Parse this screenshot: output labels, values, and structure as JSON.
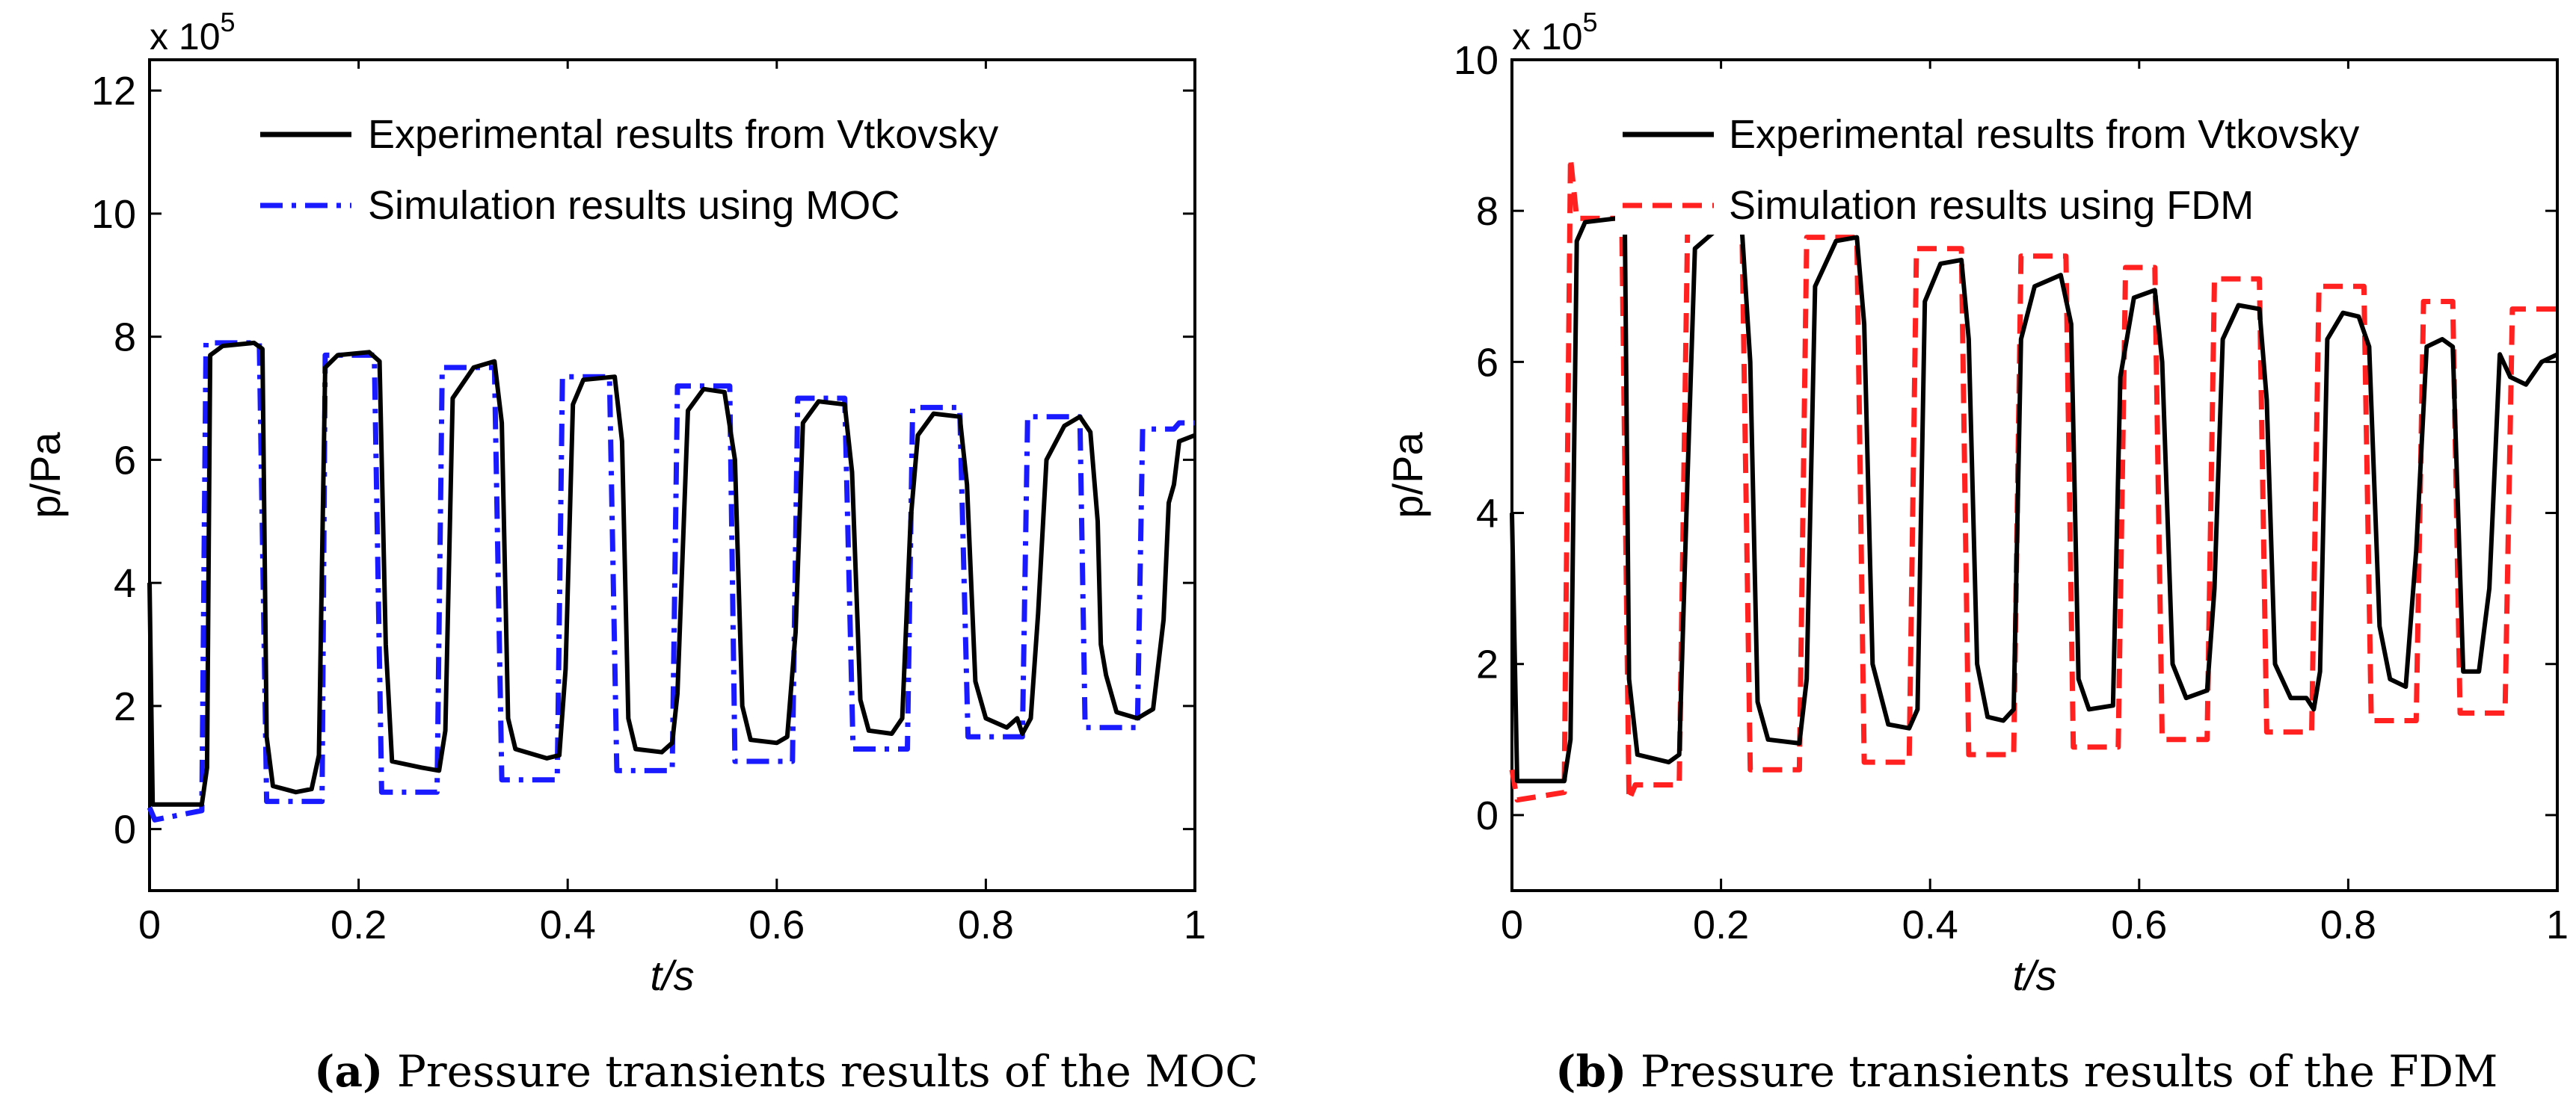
{
  "chart_data": [
    {
      "type": "line",
      "panel": "a",
      "xlabel": "t/s",
      "ylabel": "p/Pa",
      "exponent_label": "x 10",
      "exponent_power": "5",
      "xlim": [
        0,
        1
      ],
      "ylim": [
        -1,
        12.5
      ],
      "xticks": [
        0,
        0.2,
        0.4,
        0.6,
        0.8,
        1
      ],
      "xtick_labels": [
        "0",
        "0.2",
        "0.4",
        "0.6",
        "0.8",
        "1"
      ],
      "yticks": [
        0,
        2,
        4,
        6,
        8,
        10,
        12
      ],
      "ytick_labels": [
        "0",
        "2",
        "4",
        "6",
        "8",
        "10",
        "12"
      ],
      "legend_position": "top-right",
      "series": [
        {
          "name": "Experimental results from Vtkovsky",
          "color": "#000000",
          "style": "solid",
          "points": [
            [
              0,
              4.0
            ],
            [
              0.003,
              0.4
            ],
            [
              0.05,
              0.4
            ],
            [
              0.055,
              1.0
            ],
            [
              0.058,
              7.7
            ],
            [
              0.07,
              7.85
            ],
            [
              0.1,
              7.9
            ],
            [
              0.108,
              7.8
            ],
            [
              0.112,
              1.5
            ],
            [
              0.118,
              0.7
            ],
            [
              0.14,
              0.6
            ],
            [
              0.155,
              0.65
            ],
            [
              0.162,
              1.2
            ],
            [
              0.168,
              7.5
            ],
            [
              0.18,
              7.7
            ],
            [
              0.21,
              7.75
            ],
            [
              0.22,
              7.6
            ],
            [
              0.226,
              3.0
            ],
            [
              0.232,
              1.1
            ],
            [
              0.26,
              1.0
            ],
            [
              0.277,
              0.95
            ],
            [
              0.283,
              1.6
            ],
            [
              0.29,
              7.0
            ],
            [
              0.31,
              7.5
            ],
            [
              0.33,
              7.6
            ],
            [
              0.337,
              6.6
            ],
            [
              0.343,
              1.8
            ],
            [
              0.35,
              1.3
            ],
            [
              0.38,
              1.15
            ],
            [
              0.392,
              1.2
            ],
            [
              0.398,
              2.6
            ],
            [
              0.405,
              6.9
            ],
            [
              0.415,
              7.3
            ],
            [
              0.445,
              7.35
            ],
            [
              0.452,
              6.3
            ],
            [
              0.458,
              1.8
            ],
            [
              0.465,
              1.3
            ],
            [
              0.49,
              1.25
            ],
            [
              0.5,
              1.4
            ],
            [
              0.505,
              2.2
            ],
            [
              0.515,
              6.8
            ],
            [
              0.53,
              7.15
            ],
            [
              0.55,
              7.1
            ],
            [
              0.56,
              6.0
            ],
            [
              0.567,
              2.0
            ],
            [
              0.575,
              1.45
            ],
            [
              0.6,
              1.4
            ],
            [
              0.61,
              1.5
            ],
            [
              0.618,
              3.2
            ],
            [
              0.625,
              6.6
            ],
            [
              0.64,
              6.95
            ],
            [
              0.665,
              6.9
            ],
            [
              0.672,
              5.8
            ],
            [
              0.68,
              2.1
            ],
            [
              0.688,
              1.6
            ],
            [
              0.71,
              1.55
            ],
            [
              0.72,
              1.8
            ],
            [
              0.728,
              5.0
            ],
            [
              0.735,
              6.4
            ],
            [
              0.75,
              6.75
            ],
            [
              0.775,
              6.7
            ],
            [
              0.782,
              5.6
            ],
            [
              0.79,
              2.4
            ],
            [
              0.8,
              1.8
            ],
            [
              0.82,
              1.65
            ],
            [
              0.83,
              1.8
            ],
            [
              0.835,
              1.55
            ],
            [
              0.843,
              1.8
            ],
            [
              0.85,
              3.5
            ],
            [
              0.858,
              6.0
            ],
            [
              0.875,
              6.55
            ],
            [
              0.89,
              6.7
            ],
            [
              0.9,
              6.45
            ],
            [
              0.907,
              5.0
            ],
            [
              0.91,
              3.0
            ],
            [
              0.915,
              2.5
            ],
            [
              0.925,
              1.9
            ],
            [
              0.945,
              1.8
            ],
            [
              0.96,
              1.95
            ],
            [
              0.97,
              3.4
            ],
            [
              0.975,
              5.3
            ],
            [
              0.98,
              5.6
            ],
            [
              0.985,
              6.3
            ],
            [
              1.0,
              6.4
            ]
          ]
        },
        {
          "name": "Simulation results using MOC",
          "color": "#1a1aff",
          "style": "dashdot",
          "points": [
            [
              0,
              0.35
            ],
            [
              0.005,
              0.15
            ],
            [
              0.05,
              0.3
            ],
            [
              0.054,
              7.9
            ],
            [
              0.105,
              7.9
            ],
            [
              0.112,
              0.45
            ],
            [
              0.165,
              0.45
            ],
            [
              0.168,
              7.7
            ],
            [
              0.215,
              7.7
            ],
            [
              0.222,
              0.6
            ],
            [
              0.275,
              0.6
            ],
            [
              0.28,
              7.5
            ],
            [
              0.33,
              7.5
            ],
            [
              0.337,
              0.8
            ],
            [
              0.39,
              0.8
            ],
            [
              0.395,
              7.35
            ],
            [
              0.44,
              7.35
            ],
            [
              0.447,
              0.95
            ],
            [
              0.5,
              0.95
            ],
            [
              0.505,
              7.2
            ],
            [
              0.555,
              7.2
            ],
            [
              0.56,
              1.1
            ],
            [
              0.615,
              1.1
            ],
            [
              0.62,
              7.0
            ],
            [
              0.665,
              7.0
            ],
            [
              0.673,
              1.3
            ],
            [
              0.725,
              1.3
            ],
            [
              0.73,
              6.85
            ],
            [
              0.775,
              6.85
            ],
            [
              0.783,
              1.5
            ],
            [
              0.835,
              1.5
            ],
            [
              0.84,
              6.7
            ],
            [
              0.89,
              6.7
            ],
            [
              0.895,
              1.65
            ],
            [
              0.945,
              1.65
            ],
            [
              0.95,
              6.5
            ],
            [
              0.98,
              6.5
            ],
            [
              0.985,
              6.6
            ],
            [
              1.0,
              6.6
            ]
          ]
        }
      ]
    },
    {
      "type": "line",
      "panel": "b",
      "xlabel": "t/s",
      "ylabel": "p/Pa",
      "exponent_label": "x 10",
      "exponent_power": "5",
      "xlim": [
        0,
        1
      ],
      "ylim": [
        -1,
        10
      ],
      "xticks": [
        0,
        0.2,
        0.4,
        0.6,
        0.8,
        1
      ],
      "xtick_labels": [
        "0",
        "0.2",
        "0.4",
        "0.6",
        "0.8",
        "1"
      ],
      "yticks": [
        0,
        2,
        4,
        6,
        8,
        10
      ],
      "ytick_labels": [
        "0",
        "2",
        "4",
        "6",
        "8",
        "10"
      ],
      "legend_position": "top-right",
      "series": [
        {
          "name": "Experimental results from Vtkovsky",
          "color": "#000000",
          "style": "solid",
          "points": [
            [
              0,
              4.0
            ],
            [
              0.005,
              0.45
            ],
            [
              0.05,
              0.45
            ],
            [
              0.056,
              1.0
            ],
            [
              0.062,
              7.6
            ],
            [
              0.07,
              7.85
            ],
            [
              0.1,
              7.9
            ],
            [
              0.108,
              7.8
            ],
            [
              0.112,
              1.8
            ],
            [
              0.12,
              0.8
            ],
            [
              0.15,
              0.7
            ],
            [
              0.16,
              0.8
            ],
            [
              0.168,
              4.5
            ],
            [
              0.175,
              7.5
            ],
            [
              0.2,
              7.8
            ],
            [
              0.22,
              7.75
            ],
            [
              0.228,
              6.0
            ],
            [
              0.235,
              1.5
            ],
            [
              0.245,
              1.0
            ],
            [
              0.275,
              0.95
            ],
            [
              0.282,
              1.8
            ],
            [
              0.29,
              7.0
            ],
            [
              0.31,
              7.6
            ],
            [
              0.33,
              7.65
            ],
            [
              0.337,
              6.5
            ],
            [
              0.345,
              2.0
            ],
            [
              0.36,
              1.2
            ],
            [
              0.38,
              1.15
            ],
            [
              0.388,
              1.4
            ],
            [
              0.395,
              6.8
            ],
            [
              0.41,
              7.3
            ],
            [
              0.43,
              7.35
            ],
            [
              0.437,
              6.3
            ],
            [
              0.445,
              2.0
            ],
            [
              0.455,
              1.3
            ],
            [
              0.47,
              1.25
            ],
            [
              0.48,
              1.4
            ],
            [
              0.487,
              6.3
            ],
            [
              0.5,
              7.0
            ],
            [
              0.525,
              7.15
            ],
            [
              0.535,
              6.5
            ],
            [
              0.542,
              1.8
            ],
            [
              0.552,
              1.4
            ],
            [
              0.575,
              1.45
            ],
            [
              0.582,
              5.8
            ],
            [
              0.595,
              6.85
            ],
            [
              0.615,
              6.95
            ],
            [
              0.622,
              6.0
            ],
            [
              0.632,
              2.0
            ],
            [
              0.645,
              1.55
            ],
            [
              0.665,
              1.65
            ],
            [
              0.672,
              3.0
            ],
            [
              0.68,
              6.3
            ],
            [
              0.695,
              6.75
            ],
            [
              0.715,
              6.7
            ],
            [
              0.722,
              5.5
            ],
            [
              0.73,
              2.0
            ],
            [
              0.745,
              1.55
            ],
            [
              0.76,
              1.55
            ],
            [
              0.767,
              1.4
            ],
            [
              0.773,
              1.9
            ],
            [
              0.78,
              6.3
            ],
            [
              0.795,
              6.65
            ],
            [
              0.81,
              6.6
            ],
            [
              0.82,
              6.2
            ],
            [
              0.83,
              2.5
            ],
            [
              0.84,
              1.8
            ],
            [
              0.855,
              1.7
            ],
            [
              0.865,
              3.5
            ],
            [
              0.875,
              6.2
            ],
            [
              0.89,
              6.3
            ],
            [
              0.9,
              6.2
            ],
            [
              0.91,
              1.9
            ],
            [
              0.925,
              1.9
            ],
            [
              0.935,
              3.0
            ],
            [
              0.945,
              6.1
            ],
            [
              0.955,
              5.8
            ],
            [
              0.97,
              5.7
            ],
            [
              0.985,
              6.0
            ],
            [
              1.0,
              6.1
            ]
          ]
        },
        {
          "name": "Simulation results using FDM",
          "color": "#ff2020",
          "style": "dashed",
          "points": [
            [
              0,
              0.6
            ],
            [
              0.005,
              0.2
            ],
            [
              0.05,
              0.3
            ],
            [
              0.056,
              8.7
            ],
            [
              0.062,
              7.9
            ],
            [
              0.105,
              7.9
            ],
            [
              0.112,
              0.2
            ],
            [
              0.118,
              0.4
            ],
            [
              0.16,
              0.4
            ],
            [
              0.168,
              7.8
            ],
            [
              0.22,
              7.8
            ],
            [
              0.228,
              0.6
            ],
            [
              0.275,
              0.6
            ],
            [
              0.282,
              7.65
            ],
            [
              0.33,
              7.65
            ],
            [
              0.337,
              0.7
            ],
            [
              0.38,
              0.7
            ],
            [
              0.387,
              7.5
            ],
            [
              0.43,
              7.5
            ],
            [
              0.437,
              0.8
            ],
            [
              0.48,
              0.8
            ],
            [
              0.487,
              7.4
            ],
            [
              0.53,
              7.4
            ],
            [
              0.537,
              0.9
            ],
            [
              0.58,
              0.9
            ],
            [
              0.587,
              7.25
            ],
            [
              0.615,
              7.25
            ],
            [
              0.622,
              1.0
            ],
            [
              0.665,
              1.0
            ],
            [
              0.672,
              7.1
            ],
            [
              0.715,
              7.1
            ],
            [
              0.722,
              1.1
            ],
            [
              0.765,
              1.1
            ],
            [
              0.772,
              7.0
            ],
            [
              0.815,
              7.0
            ],
            [
              0.822,
              1.25
            ],
            [
              0.865,
              1.25
            ],
            [
              0.872,
              6.8
            ],
            [
              0.9,
              6.8
            ],
            [
              0.907,
              1.35
            ],
            [
              0.95,
              1.35
            ],
            [
              0.957,
              6.7
            ],
            [
              1.0,
              6.7
            ]
          ]
        }
      ]
    }
  ],
  "captions": [
    {
      "label": "(a)",
      "text": "Pressure transients results of the MOC"
    },
    {
      "label": "(b)",
      "text": "Pressure transients results of the FDM"
    }
  ]
}
